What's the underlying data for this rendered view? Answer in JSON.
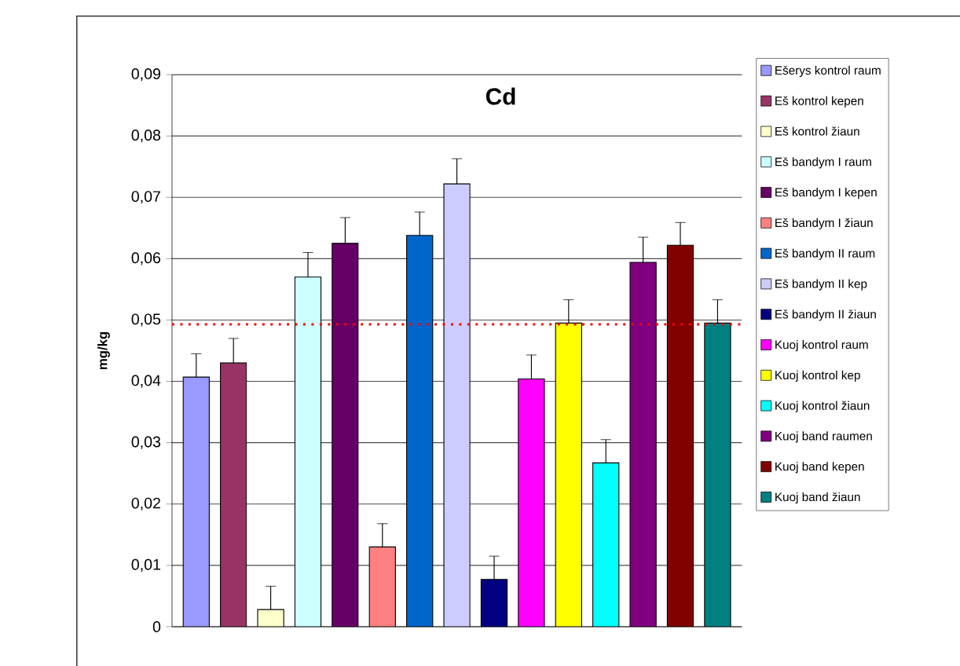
{
  "chart_data": {
    "type": "bar",
    "title": "Cd",
    "ylabel": "mg/kg",
    "categories": [
      null
    ],
    "series": [
      {
        "name": "Ešerys kontrol raum",
        "color": "#9999ff",
        "values": [
          0.0407
        ],
        "errors": [
          [
            0.0407,
            0.0445
          ]
        ]
      },
      {
        "name": "Eš kontrol kepen",
        "color": "#993366",
        "values": [
          0.043
        ],
        "errors": [
          [
            0.043,
            0.047
          ]
        ]
      },
      {
        "name": "Eš kontrol žiaun",
        "color": "#ffffcc",
        "values": [
          0.0028
        ],
        "errors": [
          [
            0.0028,
            0.0066
          ]
        ]
      },
      {
        "name": "Eš bandym I raum",
        "color": "#ccffff",
        "values": [
          0.057
        ],
        "errors": [
          [
            0.057,
            0.061
          ]
        ]
      },
      {
        "name": "Eš bandym I kepen",
        "color": "#660066",
        "values": [
          0.0625
        ],
        "errors": [
          [
            0.0625,
            0.0667
          ]
        ]
      },
      {
        "name": "Eš bandym I žiaun",
        "color": "#ff8080",
        "values": [
          0.013
        ],
        "errors": [
          [
            0.013,
            0.0168
          ]
        ]
      },
      {
        "name": "Eš bandym II raum",
        "color": "#0066cc",
        "values": [
          0.0638
        ],
        "errors": [
          [
            0.0638,
            0.0676
          ]
        ]
      },
      {
        "name": "Eš bandym II kep",
        "color": "#ccccff",
        "values": [
          0.0722
        ],
        "errors": [
          [
            0.0722,
            0.0763
          ]
        ]
      },
      {
        "name": "Eš bandym II žiaun",
        "color": "#000080",
        "values": [
          0.0077
        ],
        "errors": [
          [
            0.0077,
            0.0115
          ]
        ]
      },
      {
        "name": "Kuoj kontrol raum",
        "color": "#ff00ff",
        "values": [
          0.0404
        ],
        "errors": [
          [
            0.0404,
            0.0443
          ]
        ]
      },
      {
        "name": "Kuoj kontrol kep",
        "color": "#ffff00",
        "values": [
          0.0495
        ],
        "errors": [
          [
            0.0495,
            0.0533
          ]
        ]
      },
      {
        "name": "Kuoj kontrol žiaun",
        "color": "#00ffff",
        "values": [
          0.0267
        ],
        "errors": [
          [
            0.0267,
            0.0305
          ]
        ]
      },
      {
        "name": "Kuoj band raumen",
        "color": "#800080",
        "values": [
          0.0594
        ],
        "errors": [
          [
            0.0594,
            0.0635
          ]
        ]
      },
      {
        "name": "Kuoj band kepen",
        "color": "#800000",
        "values": [
          0.0622
        ],
        "errors": [
          [
            0.0622,
            0.0659
          ]
        ]
      },
      {
        "name": "Kuoj band žiaun",
        "color": "#008080",
        "values": [
          0.0495
        ],
        "errors": [
          [
            0.0495,
            0.0533
          ]
        ]
      }
    ],
    "ylim": [
      0,
      0.09
    ],
    "yticks": [
      0,
      {
        "value": 0.01,
        "label": "0,01"
      },
      {
        "value": 0.02,
        "label": "0,02"
      },
      {
        "value": 0.03,
        "label": "0,03"
      },
      {
        "value": 0.04,
        "label": "0,04"
      },
      {
        "value": 0.05,
        "label": "0,05"
      },
      {
        "value": 0.06,
        "label": "0,06"
      },
      {
        "value": 0.07,
        "label": "0,07"
      },
      {
        "value": 0.08,
        "label": "0,08"
      },
      {
        "value": 0.09,
        "label": "0,09"
      }
    ],
    "grid": "y",
    "legend": "right",
    "ref_lines": [
      {
        "axis": "y",
        "value": 0.0493,
        "color": "#ff0000",
        "line_style": "dotted"
      }
    ]
  }
}
